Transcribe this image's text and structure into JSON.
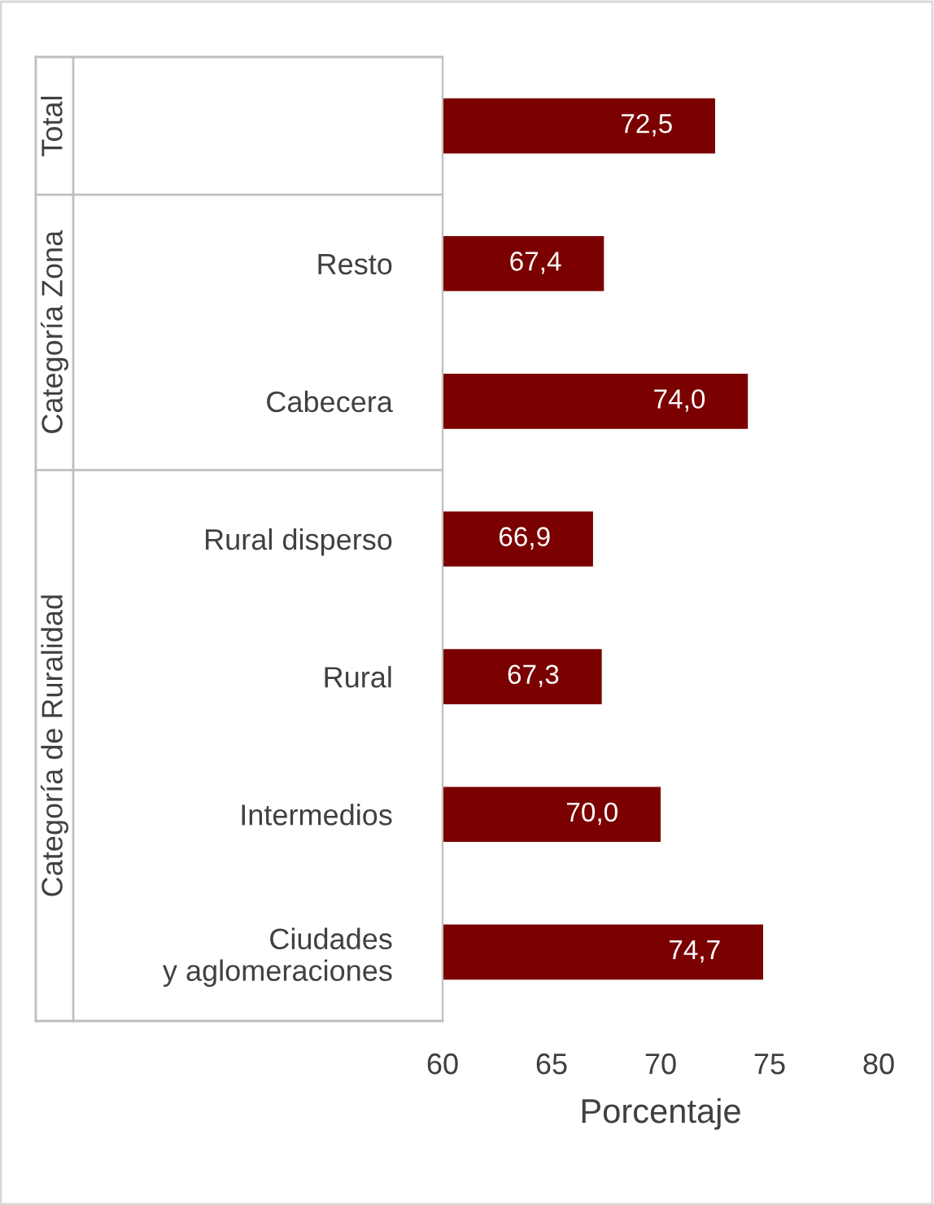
{
  "chart_data": {
    "type": "bar",
    "orientation": "horizontal",
    "categories": [
      null,
      "Resto",
      "Cabecera",
      "Rural disperso",
      "Rural",
      "Intermedios",
      "Ciudades\ny aglomeraciones"
    ],
    "values": [
      72.5,
      67.4,
      74.0,
      66.9,
      67.3,
      70.0,
      74.7
    ],
    "value_labels": [
      "72,5",
      "67,4",
      "74,0",
      "66,9",
      "67,3",
      "70,0",
      "74,7"
    ],
    "color": "#7b0000",
    "xlim": [
      60,
      80
    ],
    "xticks": [
      60,
      65,
      70,
      75,
      80
    ],
    "xlabel": "Porcentaje",
    "annotations": [
      "Total",
      "Categoría Zona",
      "Categoría de Ruralidad"
    ],
    "grid": false,
    "legend": false
  }
}
